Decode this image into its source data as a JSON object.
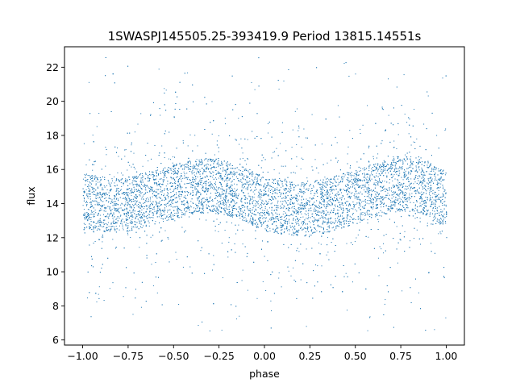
{
  "chart_data": {
    "type": "scatter",
    "title": "1SWASPJ145505.25-393419.9 Period 13815.14551s",
    "xlabel": "phase",
    "ylabel": "flux",
    "xlim": [
      -1.1,
      1.1
    ],
    "ylim": [
      5.7,
      23.2
    ],
    "xticks": [
      -1.0,
      -0.75,
      -0.5,
      -0.25,
      0.0,
      0.25,
      0.5,
      0.75,
      1.0
    ],
    "xtick_labels": [
      "−1.00",
      "−0.75",
      "−0.50",
      "−0.25",
      "0.00",
      "0.25",
      "0.50",
      "0.75",
      "1.00"
    ],
    "yticks": [
      6,
      8,
      10,
      12,
      14,
      16,
      18,
      20,
      22
    ],
    "ytick_labels": [
      "6",
      "8",
      "10",
      "12",
      "14",
      "16",
      "18",
      "20",
      "22"
    ],
    "grid": false,
    "series": [
      {
        "color": "#1f77b4",
        "marker_style": "dense points",
        "description_shape": "sinusoidal band, two cycles over phase -1 to 1",
        "x": [
          -1.0,
          -0.9,
          -0.8,
          -0.7,
          -0.6,
          -0.5,
          -0.4,
          -0.3,
          -0.2,
          -0.1,
          0.0,
          0.1,
          0.2,
          0.3,
          0.4,
          0.5,
          0.6,
          0.7,
          0.8,
          0.9,
          1.0
        ],
        "y_center": [
          14.2,
          14.0,
          13.9,
          14.1,
          14.4,
          14.7,
          15.0,
          15.1,
          14.9,
          14.5,
          14.0,
          13.8,
          13.7,
          13.8,
          14.1,
          14.4,
          14.8,
          15.1,
          15.2,
          14.9,
          14.2
        ],
        "y_core_halfwidth": 1.6,
        "y_min": 6.5,
        "y_max": 22.6
      }
    ]
  }
}
